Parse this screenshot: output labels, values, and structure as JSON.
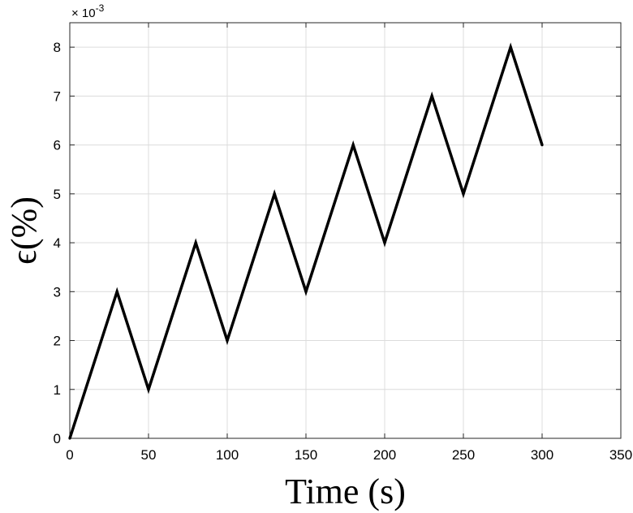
{
  "chart_data": {
    "type": "line",
    "xlabel": "Time (s)",
    "ylabel": "ϵ(%)",
    "y_multiplier": "× 10^-3",
    "xlim": [
      0,
      350
    ],
    "ylim": [
      0,
      8.5
    ],
    "xticks": [
      0,
      50,
      100,
      150,
      200,
      250,
      300,
      350
    ],
    "yticks": [
      0,
      1,
      2,
      3,
      4,
      5,
      6,
      7,
      8
    ],
    "grid": true,
    "line_color": "#000000",
    "series": [
      {
        "x": [
          0,
          30,
          50,
          80,
          100,
          130,
          150,
          180,
          200,
          230,
          250,
          280,
          300
        ],
        "values": [
          0,
          3,
          1,
          4,
          2,
          5,
          3,
          6,
          4,
          7,
          5,
          8,
          6
        ]
      }
    ]
  }
}
